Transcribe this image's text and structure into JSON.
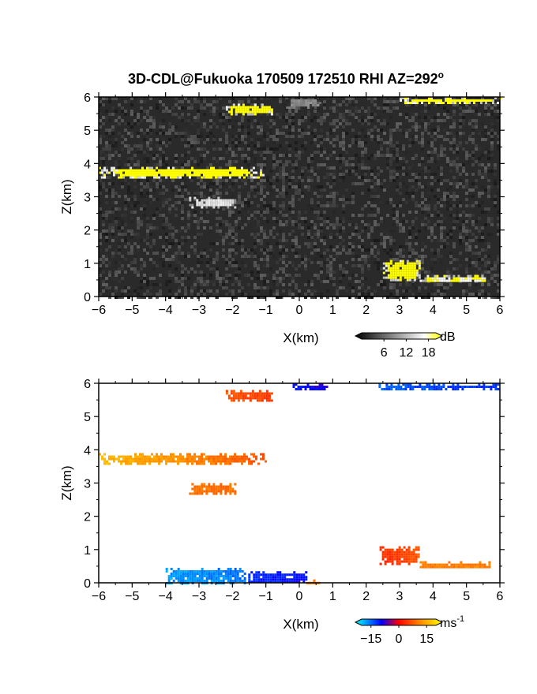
{
  "title": "3D-CDL@Fukuoka 170509 172510 RHI AZ=292",
  "title_degree_symbol": "o",
  "chart_data": [
    {
      "type": "heatmap",
      "name": "backscatter",
      "xlabel": "X(km)",
      "ylabel": "Z(km)",
      "xlim": [
        -6,
        6
      ],
      "ylim": [
        0,
        6
      ],
      "xticks": [
        "-6",
        "-5",
        "-4",
        "-3",
        "-2",
        "-1",
        "0",
        "1",
        "2",
        "3",
        "4",
        "5",
        "6"
      ],
      "yticks": [
        "0",
        "1",
        "2",
        "3",
        "4",
        "5",
        "6"
      ],
      "background": "noisy grayscale",
      "colorbar": {
        "unit": "dB",
        "ticks": [
          "6",
          "12",
          "18"
        ],
        "range": [
          0,
          20
        ],
        "high_color": "#ffff00"
      },
      "echo_layers": [
        {
          "x": [
            -6.0,
            -1.0
          ],
          "z": [
            3.6,
            3.9
          ],
          "level_dB": 20
        },
        {
          "x": [
            -2.2,
            -0.8
          ],
          "z": [
            5.5,
            5.8
          ],
          "level_dB": 20
        },
        {
          "x": [
            -3.3,
            -1.9
          ],
          "z": [
            2.7,
            3.0
          ],
          "level_dB": 16
        },
        {
          "x": [
            2.5,
            3.6
          ],
          "z": [
            0.5,
            1.1
          ],
          "level_dB": 20
        },
        {
          "x": [
            3.6,
            5.7
          ],
          "z": [
            0.45,
            0.65
          ],
          "level_dB": 18
        },
        {
          "x": [
            3.0,
            6.0
          ],
          "z": [
            5.85,
            6.0
          ],
          "level_dB": 20
        },
        {
          "x": [
            -0.4,
            0.6
          ],
          "z": [
            5.7,
            6.0
          ],
          "level_dB": 10
        }
      ]
    },
    {
      "type": "heatmap",
      "name": "doppler_velocity",
      "xlabel": "X(km)",
      "ylabel": "Z(km)",
      "xlim": [
        -6,
        6
      ],
      "ylim": [
        0,
        6
      ],
      "xticks": [
        "-6",
        "-5",
        "-4",
        "-3",
        "-2",
        "-1",
        "0",
        "1",
        "2",
        "3",
        "4",
        "5",
        "6"
      ],
      "yticks": [
        "0",
        "1",
        "2",
        "3",
        "4",
        "5",
        "6"
      ],
      "background": "white",
      "colorbar": {
        "unit": "ms",
        "unit_exponent": "-1",
        "ticks": [
          "−15",
          "0",
          "15"
        ],
        "range": [
          -20,
          20
        ]
      },
      "echo_layers": [
        {
          "x": [
            -6.0,
            -1.0
          ],
          "z": [
            3.6,
            3.9
          ],
          "velocity_ms": [
            14,
            6
          ]
        },
        {
          "x": [
            -2.2,
            -0.8
          ],
          "z": [
            5.5,
            5.8
          ],
          "velocity_ms": [
            6,
            4
          ]
        },
        {
          "x": [
            -3.3,
            -1.9
          ],
          "z": [
            2.7,
            3.0
          ],
          "velocity_ms": [
            8,
            8
          ]
        },
        {
          "x": [
            2.4,
            3.6
          ],
          "z": [
            0.6,
            1.1
          ],
          "velocity_ms": [
            3,
            6
          ]
        },
        {
          "x": [
            3.6,
            5.7
          ],
          "z": [
            0.45,
            0.65
          ],
          "velocity_ms": [
            9,
            9
          ]
        },
        {
          "x": [
            -0.2,
            0.8
          ],
          "z": [
            5.8,
            6.0
          ],
          "velocity_ms": [
            -9,
            -7
          ]
        },
        {
          "x": [
            2.3,
            6.0
          ],
          "z": [
            5.85,
            6.0
          ],
          "velocity_ms": [
            -12,
            -10
          ]
        },
        {
          "x": [
            -1.6,
            0.2
          ],
          "z": [
            0.0,
            0.35
          ],
          "velocity_ms": [
            -10,
            -8
          ]
        },
        {
          "x": [
            0.2,
            0.6
          ],
          "z": [
            0.0,
            0.1
          ],
          "velocity_ms": [
            9,
            9
          ]
        },
        {
          "x": [
            -4.0,
            -1.6
          ],
          "z": [
            0.0,
            0.45
          ],
          "velocity_ms": [
            -15,
            -13
          ]
        }
      ]
    }
  ]
}
